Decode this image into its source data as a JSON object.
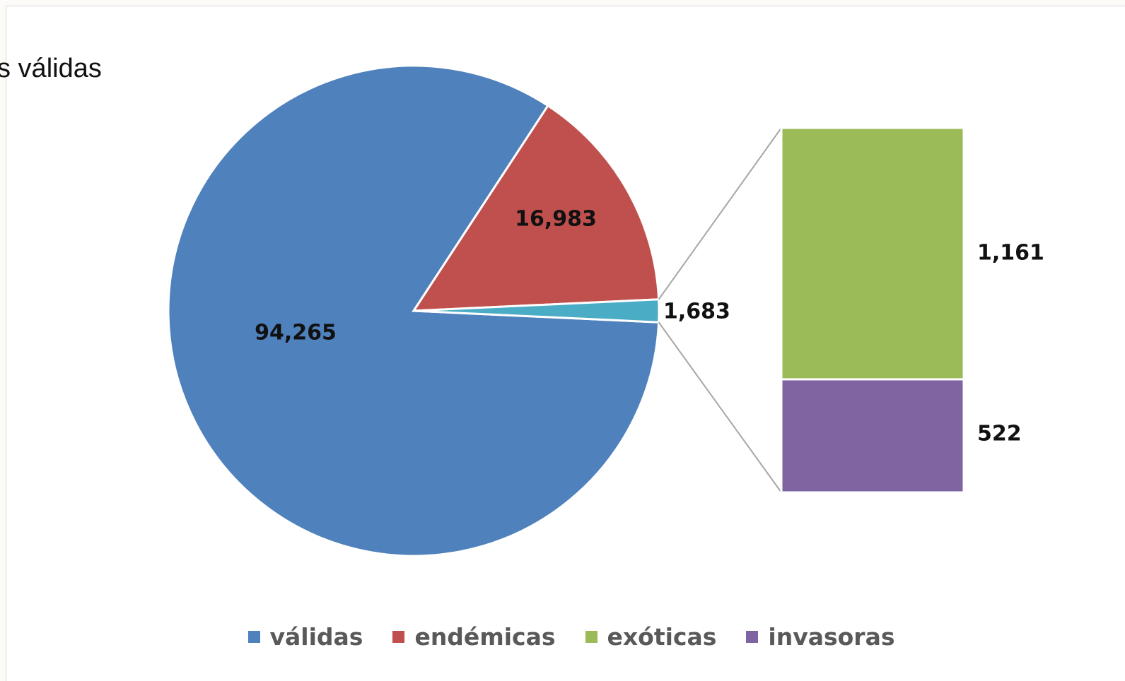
{
  "partial_text": "s válidas",
  "colors": {
    "validas": "#4f81bd",
    "endemicas": "#c0504d",
    "other": "#4bacc6",
    "exoticas": "#9bbb59",
    "invasoras": "#8064a2"
  },
  "chart_data": {
    "type": "pie",
    "subtype": "bar-of-pie",
    "pie": {
      "slices": [
        {
          "category": "válidas",
          "value": 94265,
          "label": "94,265",
          "color": "#4f81bd"
        },
        {
          "category": "endémicas",
          "value": 16983,
          "label": "16,983",
          "color": "#c0504d"
        },
        {
          "category": "",
          "value": 1683,
          "label": "1,683",
          "color": "#4bacc6"
        }
      ]
    },
    "bar": {
      "segments": [
        {
          "category": "exóticas",
          "value": 1161,
          "label": "1,161",
          "color": "#9bbb59"
        },
        {
          "category": "invasoras",
          "value": 522,
          "label": "522",
          "color": "#8064a2"
        }
      ]
    },
    "legend": {
      "position": "bottom",
      "items": [
        {
          "name": "válidas",
          "color": "#4f81bd"
        },
        {
          "name": "endémicas",
          "color": "#c0504d"
        },
        {
          "name": "exóticas",
          "color": "#9bbb59"
        },
        {
          "name": "invasoras",
          "color": "#8064a2"
        }
      ]
    }
  }
}
